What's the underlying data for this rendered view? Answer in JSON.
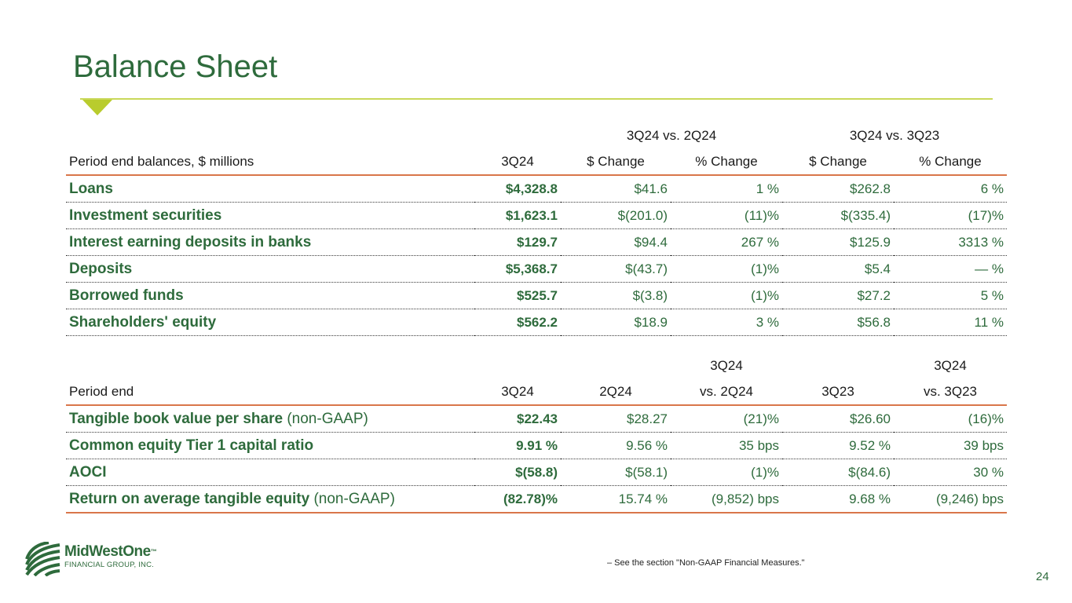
{
  "title": "Balance Sheet",
  "table1": {
    "group_headers": [
      "3Q24 vs. 2Q24",
      "3Q24 vs. 3Q23"
    ],
    "headers": [
      "Period end balances, $ millions",
      "3Q24",
      "$ Change",
      "% Change",
      "$ Change",
      "% Change"
    ],
    "rows": [
      {
        "label": "Loans",
        "v1": "$4,328.8",
        "v2": "$41.6",
        "v3": "1 %",
        "v4": "$262.8",
        "v5": "6 %"
      },
      {
        "label": "Investment securities",
        "v1": "$1,623.1",
        "v2": "$(201.0)",
        "v3": "(11)%",
        "v4": "$(335.4)",
        "v5": "(17)%"
      },
      {
        "label": "Interest earning deposits in banks",
        "v1": "$129.7",
        "v2": "$94.4",
        "v3": "267 %",
        "v4": "$125.9",
        "v5": "3313 %"
      },
      {
        "label": "Deposits",
        "v1": "$5,368.7",
        "v2": "$(43.7)",
        "v3": "(1)%",
        "v4": "$5.4",
        "v5": "— %"
      },
      {
        "label": "Borrowed funds",
        "v1": "$525.7",
        "v2": "$(3.8)",
        "v3": "(1)%",
        "v4": "$27.2",
        "v5": "5 %"
      },
      {
        "label": "Shareholders' equity",
        "v1": "$562.2",
        "v2": "$18.9",
        "v3": "3 %",
        "v4": "$56.8",
        "v5": "11 %"
      }
    ]
  },
  "table2": {
    "group_headers": [
      "3Q24",
      "3Q24"
    ],
    "headers": [
      "Period end",
      "3Q24",
      "2Q24",
      "vs. 2Q24",
      "3Q23",
      "vs. 3Q23"
    ],
    "rows": [
      {
        "label": "Tangible book value per share",
        "suffix": " (non-GAAP)",
        "v1": "$22.43",
        "v2": "$28.27",
        "v3": "(21)%",
        "v4": "$26.60",
        "v5": "(16)%"
      },
      {
        "label": "Common equity Tier 1 capital ratio",
        "suffix": "",
        "v1": "9.91 %",
        "v2": "9.56 %",
        "v3": "35 bps",
        "v4": "9.52 %",
        "v5": "39 bps"
      },
      {
        "label": "AOCI",
        "suffix": "",
        "v1": "$(58.8)",
        "v2": "$(58.1)",
        "v3": "(1)%",
        "v4": "$(84.6)",
        "v5": "30 %"
      },
      {
        "label": "Return on average tangible equity",
        "suffix": " (non-GAAP)",
        "v1": "(82.78)%",
        "v2": "15.74 %",
        "v3": "(9,852) bps",
        "v4": "9.68 %",
        "v5": "(9,246) bps"
      }
    ]
  },
  "footnote": "–    See the section \"Non-GAAP Financial Measures.\"",
  "page_number": "24",
  "logo": {
    "name": "MidWestOne",
    "tm": "™",
    "subtitle": "FINANCIAL GROUP, INC.",
    "icon": "wheat-field-icon"
  },
  "colors": {
    "brand_green": "#2e6b3c",
    "accent_lime": "#b9cc2d",
    "rule_orange": "#d9764a"
  }
}
